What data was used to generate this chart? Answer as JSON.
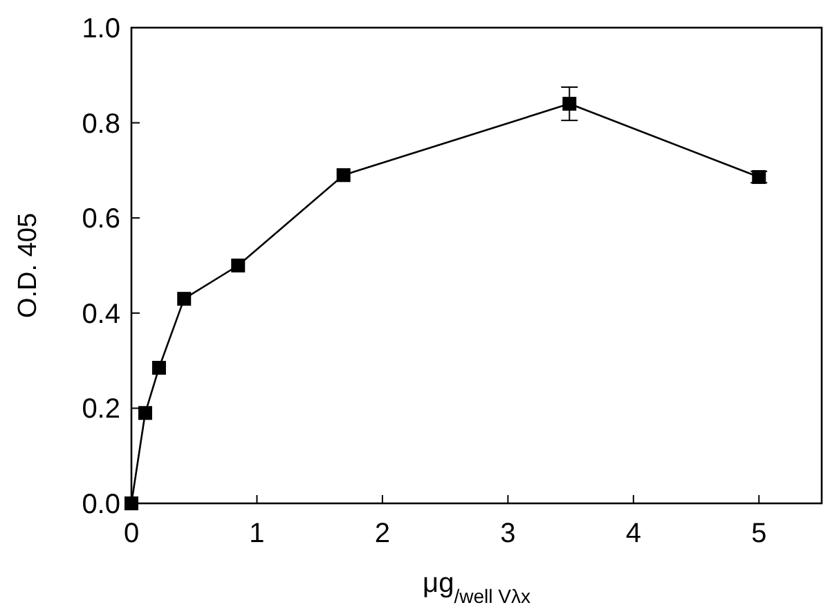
{
  "chart_data": {
    "type": "line",
    "xlabel": "μg$_{/well Vλx}$",
    "ylabel": "O.D. 405",
    "x": [
      0,
      0.11,
      0.22,
      0.42,
      0.85,
      1.69,
      3.49,
      5
    ],
    "series": [
      {
        "color": "#000000",
        "values": [
          0,
          0.19,
          0.285,
          0.43,
          0.5,
          0.69,
          0.84,
          0.686
        ],
        "errors": [
          null,
          null,
          null,
          null,
          null,
          null,
          0.035,
          0.012
        ]
      }
    ],
    "xlim": [
      0,
      5.5
    ],
    "xticks": [
      0,
      1,
      2,
      3,
      4,
      5
    ],
    "ylim": [
      0,
      1
    ],
    "yticks": [
      {
        "value": 0,
        "label": "0.0"
      },
      {
        "value": 0.2,
        "label": "0.2"
      },
      {
        "value": 0.4,
        "label": "0.4"
      },
      {
        "value": 0.6,
        "label": "0.6"
      },
      {
        "value": 0.8,
        "label": "0.8"
      },
      {
        "value": 1,
        "label": "1.0"
      }
    ],
    "marker": "square",
    "line_style": "solid",
    "grid": false
  }
}
